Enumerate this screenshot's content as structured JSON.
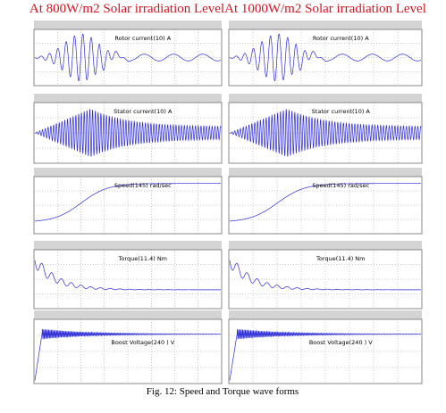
{
  "columns": [
    {
      "title": "At 800W/m2  Solar irradiation Level",
      "panels": [
        "Rotor current(10)  A",
        "Stator current(10)  A",
        "Speed(145)  rad/sec",
        "Torque(11.4)  Nm",
        "Boost Voltage(240 ) V"
      ]
    },
    {
      "title": "At 1000W/m2  Solar irradiation Level",
      "panels": [
        "Rotor current(10)  A",
        "Stator current(10)  A",
        "Speed(145)  rad/sec",
        "Torque(11.4)  Nm",
        "Boost Voltage(240 ) V"
      ]
    }
  ],
  "caption": "Fig. 12: Speed and Torque wave forms"
}
